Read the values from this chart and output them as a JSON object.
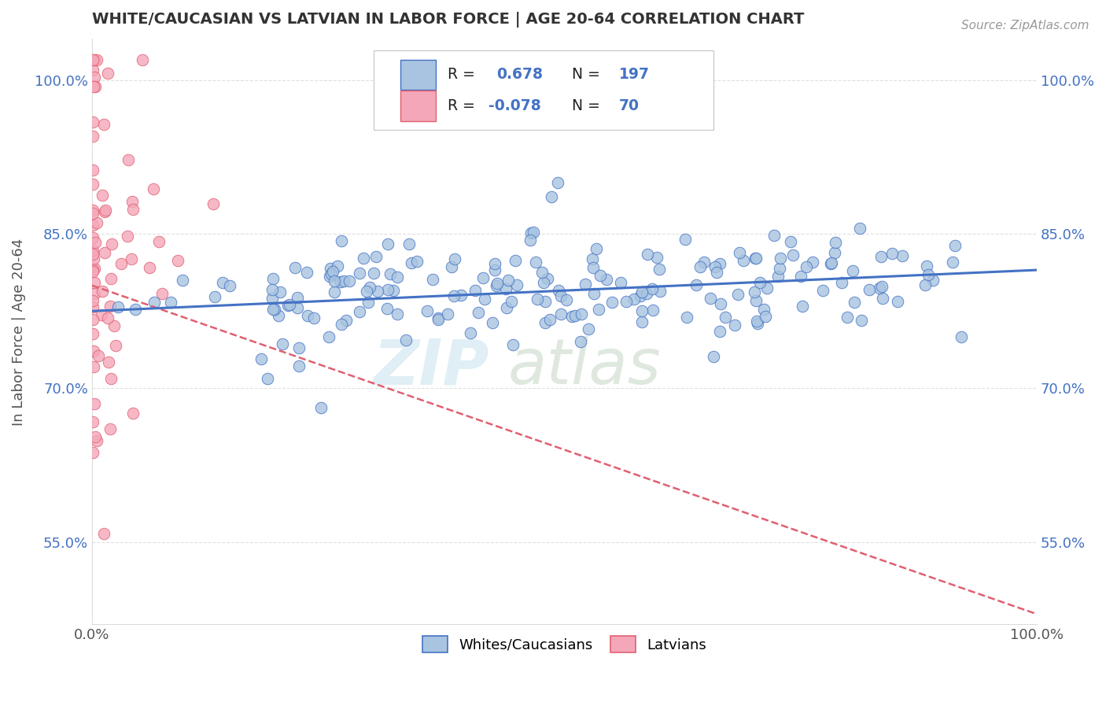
{
  "title": "WHITE/CAUCASIAN VS LATVIAN IN LABOR FORCE | AGE 20-64 CORRELATION CHART",
  "source_text": "Source: ZipAtlas.com",
  "ylabel": "In Labor Force | Age 20-64",
  "xlim": [
    0.0,
    1.0
  ],
  "ylim": [
    0.47,
    1.04
  ],
  "yticks": [
    0.55,
    0.7,
    0.85,
    1.0
  ],
  "ytick_labels": [
    "55.0%",
    "70.0%",
    "85.0%",
    "100.0%"
  ],
  "xtick_labels": [
    "0.0%",
    "100.0%"
  ],
  "xticks": [
    0.0,
    1.0
  ],
  "blue_R": 0.678,
  "blue_N": 197,
  "pink_R": -0.078,
  "pink_N": 70,
  "blue_color": "#a8c4e0",
  "blue_line_color": "#4472c4",
  "pink_color": "#f4a7b9",
  "pink_line_color": "#e06070",
  "legend_blue_label": "Whites/Caucasians",
  "legend_pink_label": "Latvians",
  "background_color": "#ffffff",
  "grid_color": "#cccccc",
  "title_color": "#333333",
  "axis_label_color": "#555555",
  "blue_trend_x0": 0.0,
  "blue_trend_x1": 1.0,
  "blue_trend_y0": 0.775,
  "blue_trend_y1": 0.815,
  "pink_trend_x0": 0.0,
  "pink_trend_x1": 1.0,
  "pink_trend_y0": 0.8,
  "pink_trend_y1": 0.48
}
